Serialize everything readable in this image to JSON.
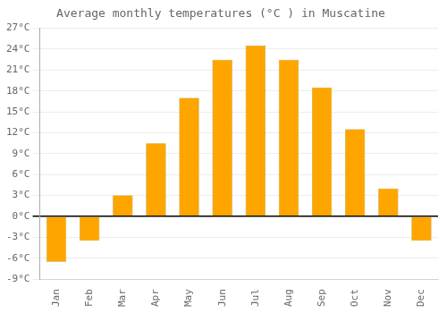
{
  "chart_data": {
    "type": "bar",
    "title": "Average monthly temperatures (°C ) in Muscatine",
    "categories": [
      "Jan",
      "Feb",
      "Mar",
      "Apr",
      "May",
      "Jun",
      "Jul",
      "Aug",
      "Sep",
      "Oct",
      "Nov",
      "Dec"
    ],
    "values": [
      -6.5,
      -3.5,
      3.0,
      10.5,
      17.0,
      22.5,
      24.5,
      22.5,
      18.5,
      12.5,
      4.0,
      -3.5
    ],
    "color": "#FFA500",
    "ylim": [
      -9,
      27
    ],
    "yticks": [
      {
        "value": -9,
        "label": "-9°C"
      },
      {
        "value": -6,
        "label": "-6°C"
      },
      {
        "value": -3,
        "label": "-3°C"
      },
      {
        "value": 0,
        "label": "0°C"
      },
      {
        "value": 3,
        "label": "3°C"
      },
      {
        "value": 6,
        "label": "6°C"
      },
      {
        "value": 9,
        "label": "9°C"
      },
      {
        "value": 12,
        "label": "12°C"
      },
      {
        "value": 15,
        "label": "15°C"
      },
      {
        "value": 18,
        "label": "18°C"
      },
      {
        "value": 21,
        "label": "21°C"
      },
      {
        "value": 24,
        "label": "24°C"
      },
      {
        "value": 27,
        "label": "27°C"
      }
    ],
    "grid": true
  }
}
